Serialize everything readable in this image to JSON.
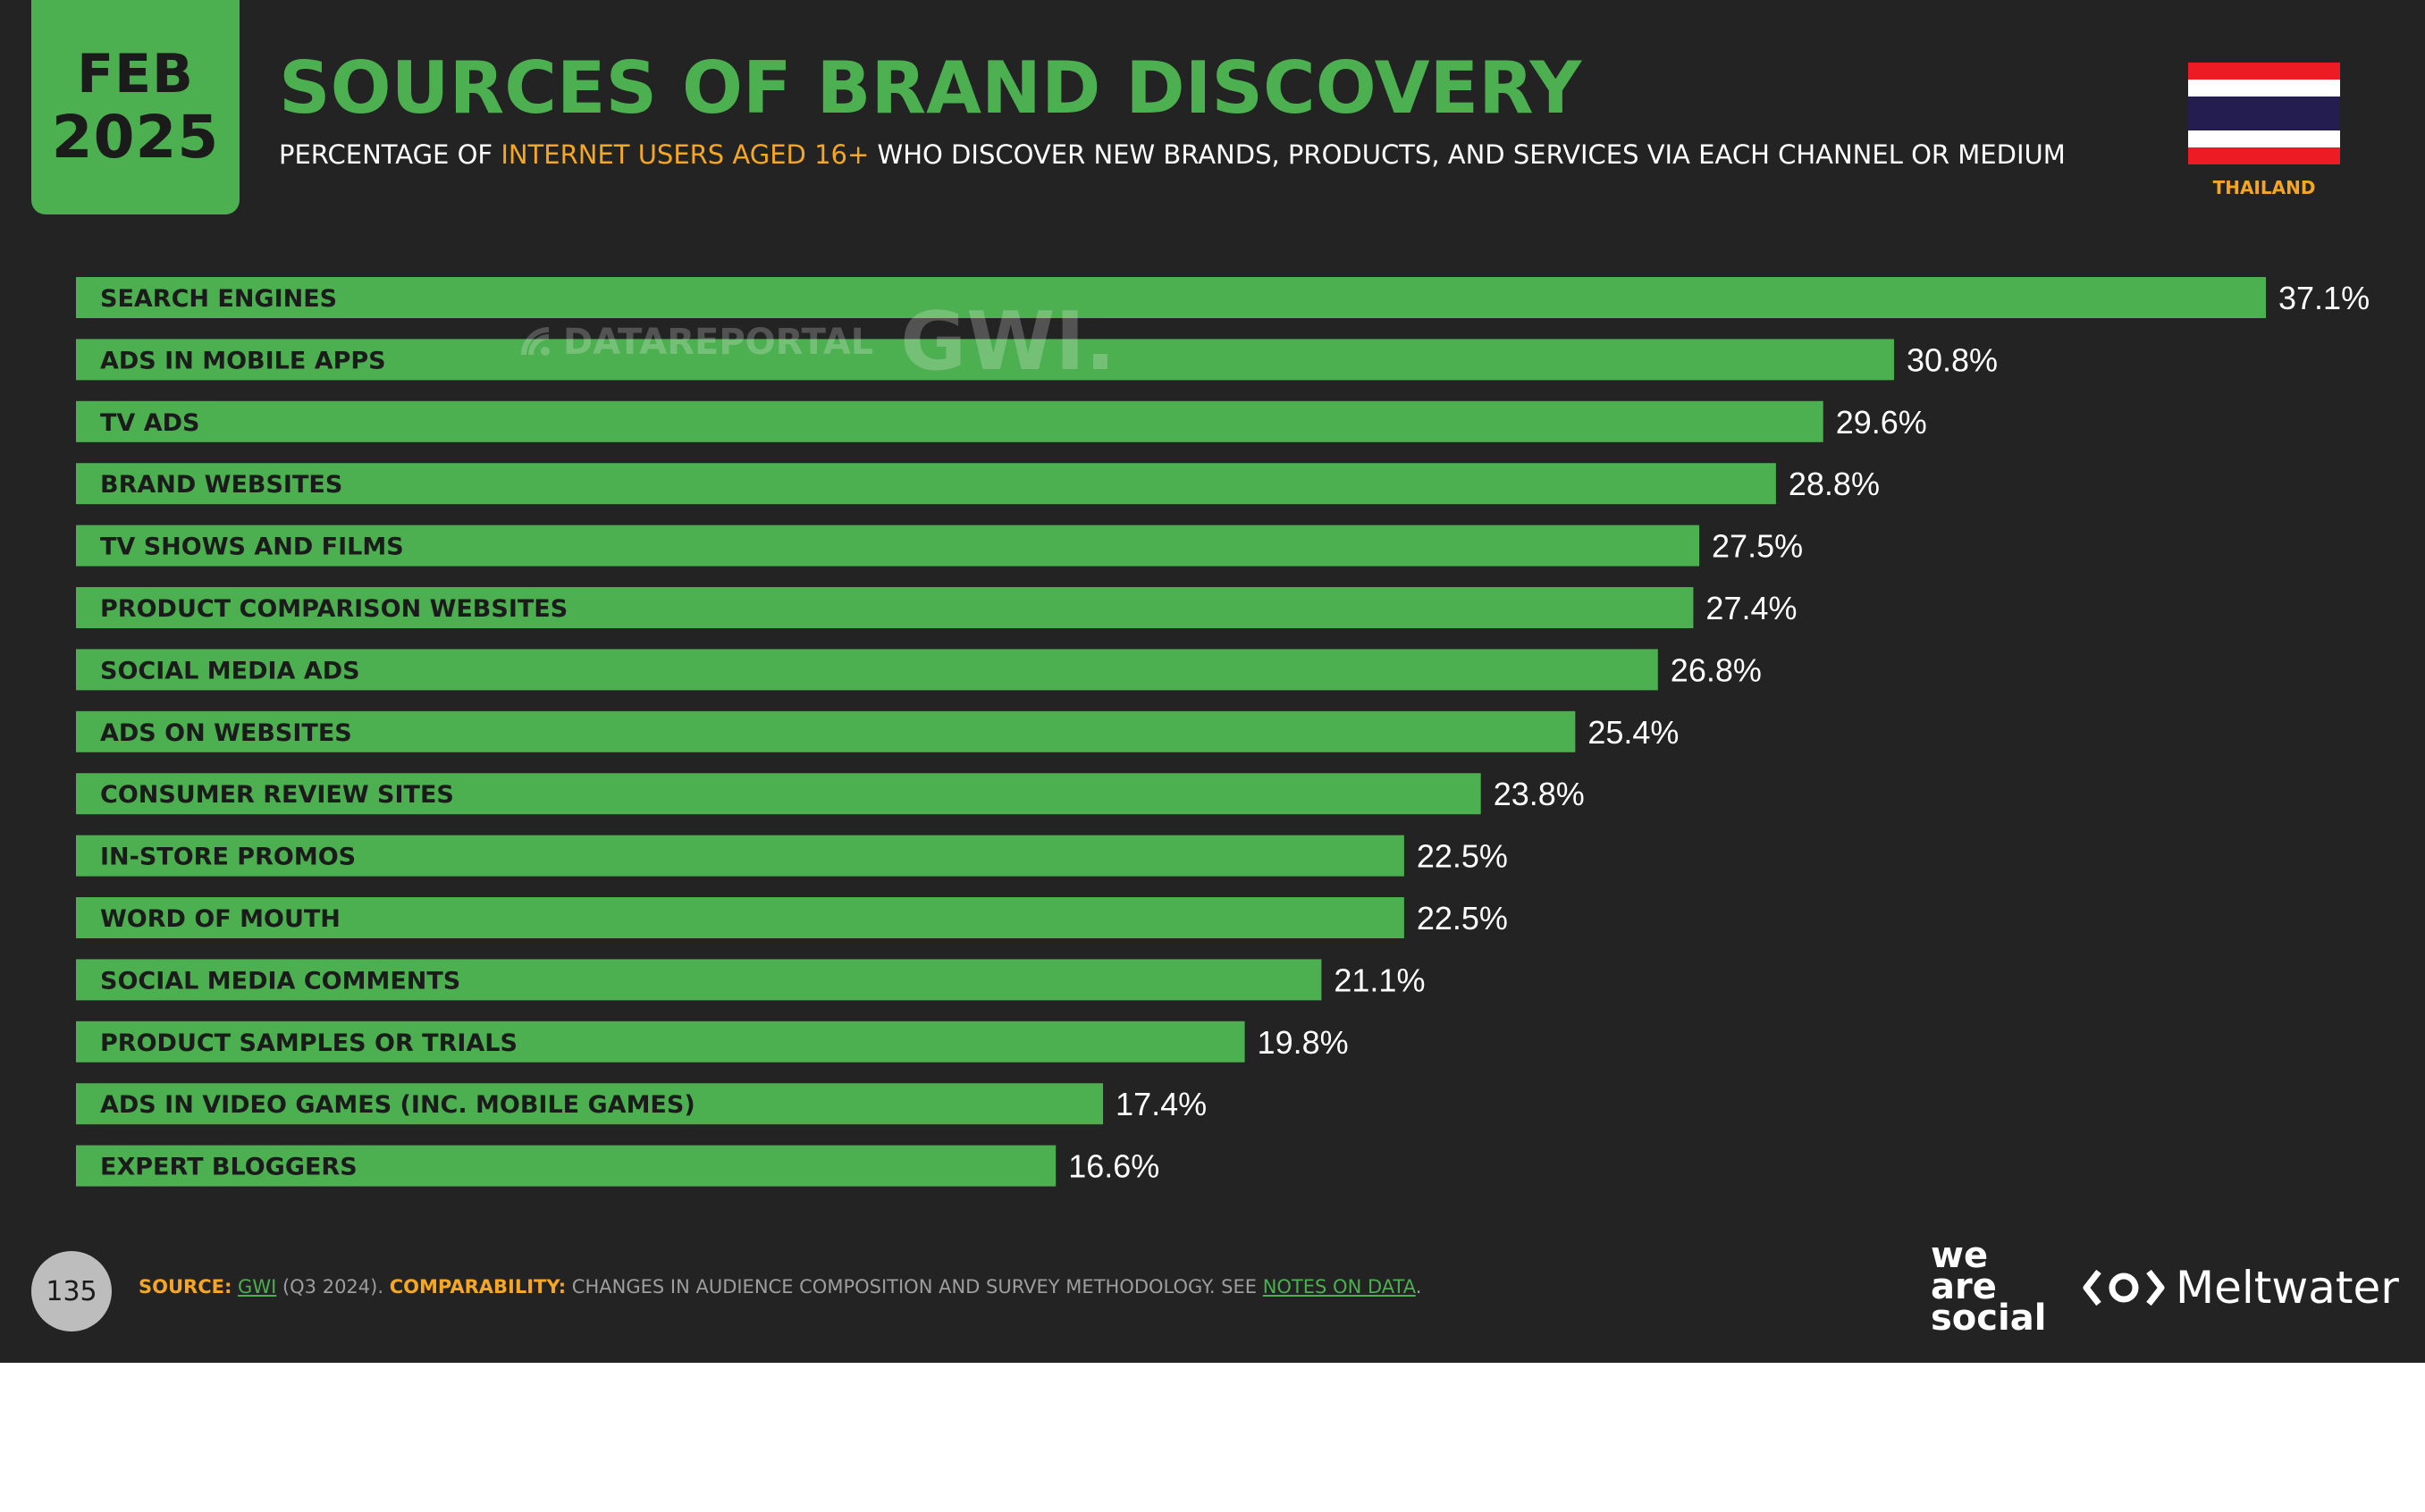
{
  "header": {
    "month": "FEB",
    "year": "2025",
    "title": "SOURCES OF BRAND DISCOVERY",
    "subtitle_pre": "PERCENTAGE OF ",
    "subtitle_highlight": "INTERNET USERS AGED 16+",
    "subtitle_post": " WHO DISCOVER NEW BRANDS, PRODUCTS, AND SERVICES VIA EACH CHANNEL OR MEDIUM"
  },
  "country": {
    "label": "THAILAND"
  },
  "watermark": {
    "datareportal": "DATAREPORTAL",
    "gwi": "GWI."
  },
  "chart_data": {
    "type": "bar",
    "orientation": "horizontal",
    "categories": [
      "SEARCH ENGINES",
      "ADS IN MOBILE APPS",
      "TV ADS",
      "BRAND WEBSITES",
      "TV SHOWS AND FILMS",
      "PRODUCT COMPARISON WEBSITES",
      "SOCIAL MEDIA ADS",
      "ADS ON WEBSITES",
      "CONSUMER REVIEW SITES",
      "IN-STORE PROMOS",
      "WORD OF MOUTH",
      "SOCIAL MEDIA COMMENTS",
      "PRODUCT SAMPLES OR TRIALS",
      "ADS IN VIDEO GAMES (INC. MOBILE GAMES)",
      "EXPERT BLOGGERS"
    ],
    "values": [
      37.1,
      30.8,
      29.6,
      28.8,
      27.5,
      27.4,
      26.8,
      25.4,
      23.8,
      22.5,
      22.5,
      21.1,
      19.8,
      17.4,
      16.6
    ],
    "value_labels": [
      "37.1%",
      "30.8%",
      "29.6%",
      "28.8%",
      "27.5%",
      "27.4%",
      "26.8%",
      "25.4%",
      "23.8%",
      "22.5%",
      "22.5%",
      "21.1%",
      "19.8%",
      "17.4%",
      "16.6%"
    ],
    "bar_color": "#4caf50",
    "grid": false,
    "legend": "none"
  },
  "footer": {
    "page_number": "135",
    "source_key": "SOURCE:",
    "source_link": "GWI",
    "source_rest": " (Q3 2024). ",
    "comparability_key": "COMPARABILITY:",
    "comparability_text": " CHANGES IN AUDIENCE COMPOSITION AND SURVEY METHODOLOGY. SEE ",
    "notes_link": "NOTES ON DATA",
    "notes_end": ".",
    "brand_was_1": "we",
    "brand_was_2": "are",
    "brand_was_3": "social",
    "brand_meltwater": "Meltwater"
  },
  "colors": {
    "background": "#232323",
    "accent_green": "#4caf50",
    "highlight_orange": "#f5a623"
  }
}
